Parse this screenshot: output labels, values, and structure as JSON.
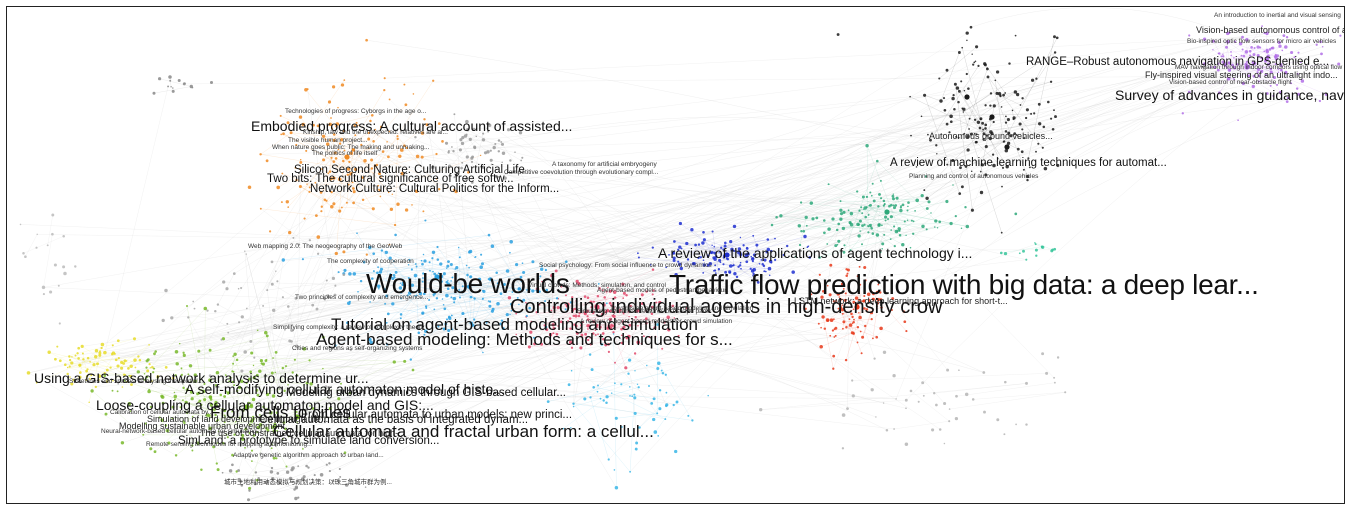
{
  "labels": {
    "l1": "Traffic flow prediction with big data: a deep lear...",
    "l2": "Would-be worlds",
    "l3": "Controlling individual agents in high-density crow",
    "l4": "Tutorial on agent-based modeling and simulation",
    "l5": "Agent-based modeling: Methods and techniques for s...",
    "l6": "Cellular automata and fractal urban form: a cellul...",
    "l7": "From cells to cities",
    "l8": "Loose-coupling a cellular automaton model and GIS:...",
    "l9": "A self-modifying cellular automaton model of histo...",
    "l10": "Using a GIS-based network analysis to determine ur...",
    "l11": "Embodied progress: A cultural account of assisted...",
    "l12": "Silicon Second Nature: Culturing Artificial Life",
    "l13": "Two bits: The cultural significance of free softw...",
    "l14": "Network Culture: Cultural Politics for the Inform...",
    "l15": "RANGE–Robust autonomous navigation in GPS-denied e...",
    "l16": "Survey of advances in guidance, navigation, and co...",
    "l17": "A review of machine learning techniques for automat...",
    "l18": "A review of the applications of agent technology i...",
    "l19": "From cellular automata to urban models: new princi...",
    "l20": "Cellular automata as the basis of integrated dynam...",
    "l21": "Modeling urban dynamics through GIS-based cellular...",
    "l22": "SimLand: a prototype to simulate land conversion...",
    "l23": "Modelling sustainable urban development...",
    "l24": "Simulation of land development through the...",
    "l25": "The use of constrained cellular automata for high-...",
    "l26": "LSTM network: a deep learning approach for short-t...",
    "l27": "Autonomous ground vehicles...",
    "l28": "Fly-inspired visual steering of an ultralight indo...",
    "l29": "Vision-based autonomous control of a hovering ai...",
    "l30": "An introduction to inertial and visual sensing",
    "l31": "Vision-based control of near-obstacle flight",
    "l32": "Technologies of progress: Cyborgs in the age o...",
    "l33": "The visible human project...",
    "l34": "When nature goes public: The making and unmaking...",
    "l35": "Kinship, law and the unexpected: relatives are al...",
    "l36": "The politics of life itself",
    "l37": "A taxonomy for artificial embryogeny",
    "l38": "Competitive coevolution through evolutionary compl...",
    "l39": "Web mapping 2.0: The neogeography of the GeoWeb",
    "l40": "Two principles of complexity and emergence...",
    "l41": "Simplifying complexity: a review of complexity theory",
    "l42": "Cities and regions as self-organizing systems",
    "l43": "Social psychology: From social influence to crowd dynamics",
    "l44": "Virtual crowds: Methods, simulation, and control",
    "l45": "Simulating dynamical features of escape panic",
    "l46": "Towards an agent-based modeling and simulation",
    "l47": "Streetlines and spaces: Analysing the spatial...",
    "l48": "A review of agent-based models for crowd simulation",
    "l49": "Agent-based models of pedestrian behaviour",
    "l50": "The complexity of cooperation",
    "l51": "城市土地利用动态模拟与规划决策：以珠三角城市群为例...",
    "l52": "Planning and control of autonomous vehicles",
    "l53": "Calibration of cellular automata by...",
    "l54": "Neural-network-based cellular automata for simulating...",
    "l55": "Remote sensing techniques for mapping and monitoring...",
    "l56": "Adaptive genetic algorithm approach to urban land...",
    "l57": "Bio-inspired optic flow sensors for micro air vehicles",
    "l58": "MAV navigation through indoor corridors using optical flow"
  }
}
